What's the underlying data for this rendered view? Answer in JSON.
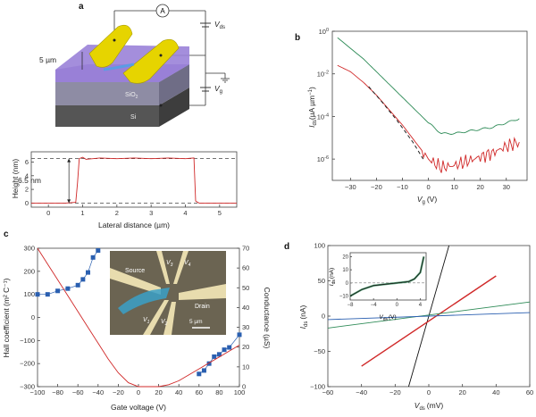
{
  "panels": {
    "a": {
      "label": "a",
      "ammeter": "A",
      "vds_label": "V",
      "vds_sub": "ds",
      "vg_label": "V",
      "vg_sub": "g",
      "scale_label": "5 µm",
      "sio2_label": "SiO",
      "sio2_sub": "2",
      "si_label": "Si",
      "profile": {
        "ylabel": "Height (nm)",
        "xlabel": "Lateral distance (µm)",
        "step_label": "6.5 nm",
        "yticks": [
          "0",
          "2",
          "4",
          "6"
        ],
        "xticks": [
          "0",
          "1",
          "2",
          "3",
          "4",
          "5"
        ]
      }
    },
    "b": {
      "label": "b",
      "ylabel_main": "I",
      "ylabel_sub": "ds",
      "ylabel_unit": "(µA µm",
      "ylabel_exp": "−1",
      "xlabel_main": "V",
      "xlabel_sub": "g",
      "xlabel_unit": "(V)",
      "yticks": [
        {
          "base": "10",
          "exp": "0"
        },
        {
          "base": "10",
          "exp": "-2"
        },
        {
          "base": "10",
          "exp": "-4"
        },
        {
          "base": "10",
          "exp": "-6"
        }
      ],
      "xticks": [
        "−30",
        "−20",
        "−10",
        "0",
        "10",
        "20",
        "30"
      ]
    },
    "c": {
      "label": "c",
      "ylabel_left": "Hall coefficient (m² C⁻¹)",
      "ylabel_right": "Conductance (µS)",
      "xlabel": "Gate voltage (V)",
      "yticks_left": [
        "300",
        "200",
        "100",
        "0",
        "−100",
        "−200",
        "−300"
      ],
      "yticks_right": [
        "70",
        "60",
        "50",
        "40",
        "30",
        "20",
        "10",
        "0"
      ],
      "xticks": [
        "−100",
        "−80",
        "−60",
        "−40",
        "−20",
        "0",
        "20",
        "40",
        "60",
        "80",
        "100"
      ],
      "inset": {
        "source": "Source",
        "drain": "Drain",
        "v1": "V",
        "v1_sub": "1",
        "v2": "V",
        "v2_sub": "2",
        "v3": "V",
        "v3_sub": "3",
        "v4": "V",
        "v4_sub": "4",
        "scale": "5 µm"
      }
    },
    "d": {
      "label": "d",
      "ylabel_main": "I",
      "ylabel_sub": "ds",
      "ylabel_unit": "(nA)",
      "xlabel_main": "V",
      "xlabel_sub": "ds",
      "xlabel_unit": "(mV)",
      "yticks": [
        "100",
        "50",
        "0",
        "−50",
        "−100"
      ],
      "xticks": [
        "−60",
        "−40",
        "−20",
        "0",
        "20",
        "40",
        "60"
      ],
      "inset": {
        "ylabel_main": "I",
        "ylabel_sub": "ds",
        "ylabel_unit": "(nA)",
        "xlabel_main": "V",
        "xlabel_sub": "ds",
        "xlabel_unit": "(V)",
        "yticks": [
          "20",
          "10",
          "0",
          "−10"
        ],
        "xticks": [
          "−8",
          "−4",
          "0",
          "4"
        ]
      }
    }
  },
  "colors": {
    "green": "#2e8b57",
    "red": "#d02828",
    "blue": "#2a5fb0",
    "black": "#111111",
    "purple": "#8a72c8",
    "yellow": "#e6d400"
  },
  "chart_data": [
    {
      "id": "a-profile",
      "type": "line",
      "title": "",
      "xlabel": "Lateral distance (µm)",
      "ylabel": "Height (nm)",
      "xlim": [
        -0.5,
        5.5
      ],
      "ylim": [
        -0.6,
        7.5
      ],
      "series": [
        {
          "name": "height",
          "x": [
            -0.5,
            0.0,
            0.5,
            0.8,
            0.85,
            0.9,
            1.0,
            1.1,
            1.5,
            2.0,
            2.5,
            3.0,
            3.5,
            4.0,
            4.25,
            4.3,
            4.4,
            5.0,
            5.5
          ],
          "y": [
            0.0,
            0.0,
            0.0,
            0.1,
            3.0,
            6.5,
            6.7,
            6.4,
            6.6,
            6.5,
            6.6,
            6.5,
            6.6,
            6.5,
            6.6,
            0.3,
            0.0,
            0.0,
            0.0
          ]
        }
      ],
      "reference_lines_y": [
        0,
        6.5
      ]
    },
    {
      "id": "b",
      "type": "line",
      "title": "",
      "xlabel": "Vg (V)",
      "ylabel": "Ids (µA µm−1)",
      "yscale": "log",
      "xlim": [
        -37,
        38
      ],
      "ylim_log10": [
        -7,
        0
      ],
      "series": [
        {
          "name": "green",
          "x": [
            -35,
            -30,
            -25,
            -20,
            -15,
            -10,
            -5,
            0,
            5,
            10,
            15,
            20,
            25,
            30,
            35
          ],
          "y_log10": [
            -0.3,
            -0.8,
            -1.3,
            -1.9,
            -2.5,
            -3.1,
            -3.7,
            -4.3,
            -4.8,
            -4.8,
            -4.7,
            -4.6,
            -4.5,
            -4.3,
            -4.1
          ]
        },
        {
          "name": "red",
          "x": [
            -35,
            -30,
            -25,
            -20,
            -15,
            -10,
            -5,
            0,
            5,
            10,
            15,
            20,
            25,
            30,
            35
          ],
          "y_log10": [
            -1.6,
            -1.9,
            -2.4,
            -3.0,
            -3.7,
            -4.4,
            -5.2,
            -6.0,
            -6.4,
            -6.3,
            -6.1,
            -5.9,
            -5.7,
            -5.4,
            -5.2
          ]
        },
        {
          "name": "fit-dashed",
          "x": [
            -23,
            -18,
            -12,
            -6,
            -2
          ],
          "y_log10": [
            -2.6,
            -3.3,
            -4.2,
            -5.2,
            -6.0
          ]
        }
      ]
    },
    {
      "id": "c",
      "type": "scatter",
      "title": "",
      "xlabel": "Gate voltage (V)",
      "ylabel": "Hall coefficient (m² C⁻¹)",
      "ylabel_right": "Conductance (µS)",
      "xlim": [
        -100,
        100
      ],
      "ylim": [
        -300,
        300
      ],
      "ylim_right": [
        0,
        70
      ],
      "series": [
        {
          "name": "Hall coefficient (hole side)",
          "axis": "left",
          "x": [
            -100,
            -90,
            -80,
            -70,
            -60,
            -55,
            -50,
            -45,
            -40
          ],
          "y": [
            100,
            100,
            115,
            125,
            140,
            165,
            195,
            260,
            290
          ]
        },
        {
          "name": "Hall coefficient (electron side)",
          "axis": "left",
          "x": [
            60,
            65,
            70,
            75,
            80,
            85,
            90,
            100
          ],
          "y": [
            -245,
            -230,
            -200,
            -170,
            -160,
            -140,
            -130,
            -75
          ]
        },
        {
          "name": "Conductance",
          "axis": "right",
          "x": [
            -100,
            -90,
            -80,
            -70,
            -60,
            -50,
            -40,
            -30,
            -20,
            -10,
            0,
            10,
            20,
            30,
            40,
            50,
            60,
            70,
            80,
            90,
            100
          ],
          "y": [
            70,
            62,
            54,
            46,
            38,
            30,
            22,
            14,
            7,
            2,
            0,
            0,
            0,
            1,
            3,
            6,
            9,
            12,
            15,
            18,
            21
          ]
        }
      ]
    },
    {
      "id": "d",
      "type": "line",
      "title": "",
      "xlabel": "Vds (mV)",
      "ylabel": "Ids (nA)",
      "xlim": [
        -60,
        60
      ],
      "ylim": [
        -100,
        100
      ],
      "series": [
        {
          "name": "black",
          "x": [
            -12,
            12
          ],
          "y": [
            -100,
            100
          ]
        },
        {
          "name": "red",
          "x": [
            -40,
            40
          ],
          "y": [
            -71,
            57
          ]
        },
        {
          "name": "green",
          "x": [
            -60,
            60
          ],
          "y": [
            -17,
            20
          ]
        },
        {
          "name": "blue",
          "x": [
            -60,
            60
          ],
          "y": [
            -5,
            5
          ]
        }
      ]
    },
    {
      "id": "d-inset",
      "type": "line",
      "title": "",
      "xlabel": "Vds (V)",
      "ylabel": "Ids (nA)",
      "xlim": [
        -8,
        5
      ],
      "ylim": [
        -13,
        23
      ],
      "series": [
        {
          "name": "data",
          "x": [
            -8,
            -6,
            -4,
            -2,
            0,
            2,
            3,
            4,
            4.6
          ],
          "y": [
            -10,
            -5,
            -2,
            -1,
            0,
            1,
            3,
            8,
            20
          ]
        }
      ]
    }
  ]
}
